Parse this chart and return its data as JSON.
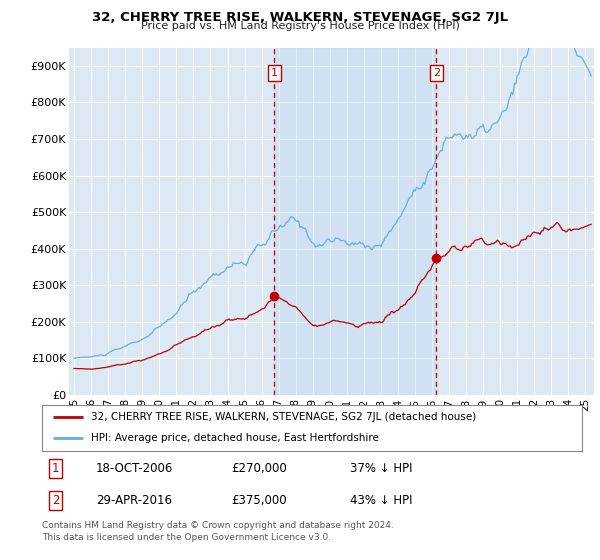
{
  "title": "32, CHERRY TREE RISE, WALKERN, STEVENAGE, SG2 7JL",
  "subtitle": "Price paid vs. HM Land Registry's House Price Index (HPI)",
  "ylim": [
    0,
    950000
  ],
  "yticks": [
    0,
    100000,
    200000,
    300000,
    400000,
    500000,
    600000,
    700000,
    800000,
    900000
  ],
  "ytick_labels": [
    "£0",
    "£100K",
    "£200K",
    "£300K",
    "£400K",
    "£500K",
    "£600K",
    "£700K",
    "£800K",
    "£900K"
  ],
  "plot_bg_color": "#dce9f5",
  "shade_color": "#c8ddf0",
  "hpi_color": "#6aaed6",
  "price_color": "#c00000",
  "vline_color": "#c00000",
  "sale1_x": 2006.75,
  "sale1_y": 270000,
  "sale1_label": "1",
  "sale2_x": 2016.25,
  "sale2_y": 375000,
  "sale2_label": "2",
  "legend_red_label": "32, CHERRY TREE RISE, WALKERN, STEVENAGE, SG2 7JL (detached house)",
  "legend_blue_label": "HPI: Average price, detached house, East Hertfordshire",
  "annotation1_date": "18-OCT-2006",
  "annotation1_price": "£270,000",
  "annotation1_pct": "37% ↓ HPI",
  "annotation2_date": "29-APR-2016",
  "annotation2_price": "£375,000",
  "annotation2_pct": "43% ↓ HPI",
  "footer": "Contains HM Land Registry data © Crown copyright and database right 2024.\nThis data is licensed under the Open Government Licence v3.0.",
  "xlim_left": 1994.7,
  "xlim_right": 2025.5
}
